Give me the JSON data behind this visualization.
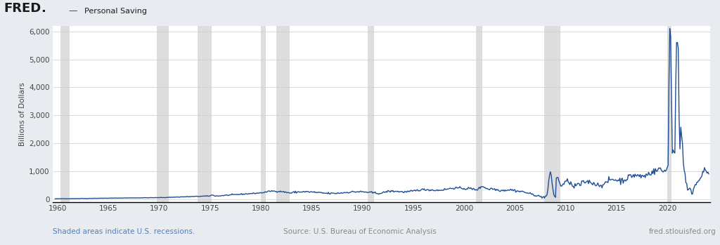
{
  "title": "Personal Saving",
  "ylabel": "Billions of Dollars",
  "ylim": [
    -100,
    6200
  ],
  "yticks": [
    0,
    1000,
    2000,
    3000,
    4000,
    5000,
    6000
  ],
  "xlim": [
    1959.5,
    2024.2
  ],
  "xticks": [
    1960,
    1965,
    1970,
    1975,
    1980,
    1985,
    1990,
    1995,
    2000,
    2005,
    2010,
    2015,
    2020
  ],
  "line_color": "#1f4e96",
  "line_width": 1.0,
  "background_color": "#e8ecf0",
  "plot_bg_color": "#ffffff",
  "recession_color": "#d8d8d8",
  "recession_alpha": 0.85,
  "footer_left": "Shaded areas indicate U.S. recessions.",
  "footer_center": "Source: U.S. Bureau of Economic Analysis",
  "footer_right": "fred.stlouisfed.org",
  "recessions": [
    [
      1960.25,
      1961.17
    ],
    [
      1969.75,
      1970.92
    ],
    [
      1973.75,
      1975.17
    ],
    [
      1980.0,
      1980.5
    ],
    [
      1981.5,
      1982.83
    ],
    [
      1990.5,
      1991.17
    ],
    [
      2001.17,
      2001.83
    ],
    [
      2007.92,
      2009.5
    ],
    [
      2020.0,
      2020.42
    ]
  ]
}
